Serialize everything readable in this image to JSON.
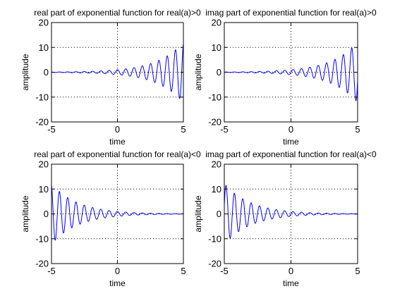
{
  "figure": {
    "background": "#ffffff",
    "line_color": "#0000ff"
  },
  "chart_data": [
    {
      "type": "line",
      "title": "real part of exponential function for real(a)>0",
      "xlabel": "time",
      "ylabel": "amplitude",
      "xlim": [
        -5,
        5
      ],
      "ylim": [
        -20,
        20
      ],
      "xticks": [
        -5,
        0,
        5
      ],
      "yticks": [
        -20,
        -10,
        0,
        10,
        20
      ],
      "grid": true,
      "series": [
        {
          "function": "exp(0.5t)*cos(10t)",
          "color": "#0000ff"
        }
      ]
    },
    {
      "type": "line",
      "title": "imag part of exponential function for real(a)>0",
      "xlabel": "time",
      "ylabel": "amplitude",
      "xlim": [
        -5,
        5
      ],
      "ylim": [
        -20,
        20
      ],
      "xticks": [
        -5,
        0,
        5
      ],
      "yticks": [
        -20,
        -10,
        0,
        10,
        20
      ],
      "grid": true,
      "series": [
        {
          "function": "exp(0.5t)*sin(10t)",
          "color": "#0000ff"
        }
      ]
    },
    {
      "type": "line",
      "title": "real part of exponential function for real(a)<0",
      "xlabel": "time",
      "ylabel": "amplitude",
      "xlim": [
        -5,
        5
      ],
      "ylim": [
        -20,
        20
      ],
      "xticks": [
        -5,
        0,
        5
      ],
      "yticks": [
        -20,
        -10,
        0,
        10,
        20
      ],
      "grid": true,
      "series": [
        {
          "function": "exp(-0.5t)*cos(10t)",
          "color": "#0000ff"
        }
      ]
    },
    {
      "type": "line",
      "title": "imag part of exponential function for real(a)<0",
      "xlabel": "time",
      "ylabel": "amplitude",
      "xlim": [
        -5,
        5
      ],
      "ylim": [
        -20,
        20
      ],
      "xticks": [
        -5,
        0,
        5
      ],
      "yticks": [
        -20,
        -10,
        0,
        10,
        20
      ],
      "grid": true,
      "series": [
        {
          "function": "exp(-0.5t)*sin(10t)",
          "color": "#0000ff"
        }
      ]
    }
  ]
}
